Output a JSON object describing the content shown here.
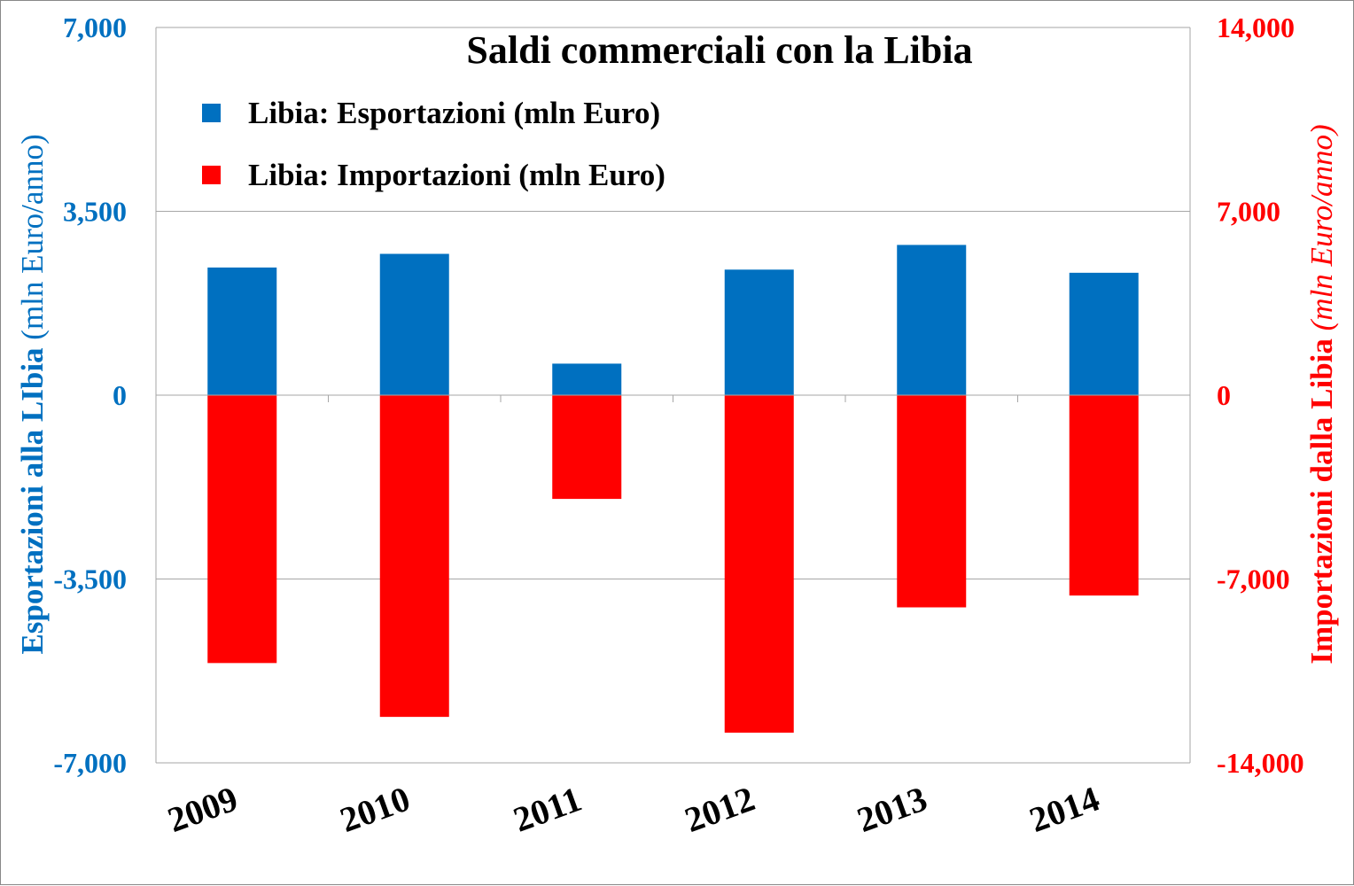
{
  "chart_data": {
    "type": "bar",
    "title": "Saldi commerciali con la Libia",
    "categories": [
      "2009",
      "2010",
      "2011",
      "2012",
      "2013",
      "2014"
    ],
    "series": [
      {
        "name": "Libia: Esportazioni (mln Euro)",
        "axis": "left",
        "color": "#0070C0",
        "values": [
          2430,
          2690,
          600,
          2390,
          2860,
          2330
        ]
      },
      {
        "name": "Libia: Importazioni (mln Euro)",
        "axis": "right",
        "color": "#FF0000",
        "values": [
          -10200,
          -12250,
          -3950,
          -12850,
          -8080,
          -7630
        ]
      }
    ],
    "y_left": {
      "label_parts": [
        "Esportazioni alla LIbia ",
        "(mln Euro/anno)"
      ],
      "ticks": [
        "7,000",
        "3,500",
        "0",
        "-3,500",
        "-7,000"
      ],
      "tick_values": [
        7000,
        3500,
        0,
        -3500,
        -7000
      ],
      "ylim": [
        -7000,
        7000
      ],
      "color": "#0070C0"
    },
    "y_right": {
      "label_parts": [
        "Importazioni dalla Libia ",
        "(mln Euro/anno)"
      ],
      "ticks": [
        "14,000",
        "7,000",
        "0",
        "-7,000",
        "-14,000"
      ],
      "tick_values": [
        14000,
        7000,
        0,
        -7000,
        -14000
      ],
      "ylim": [
        -14000,
        14000
      ],
      "color": "#FF0000"
    },
    "grid": true,
    "legend_position": "top-left",
    "gridline_color": "#A6A6A6"
  }
}
